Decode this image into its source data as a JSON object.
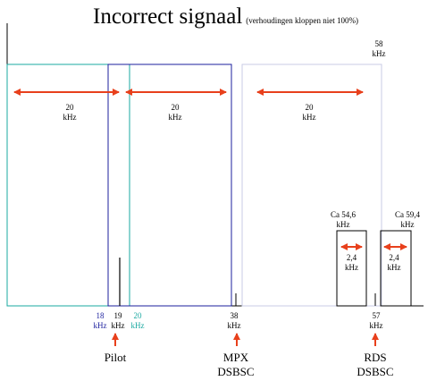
{
  "title": {
    "main": "Incorrect signaal",
    "sub": "(verhoudingen kloppen niet 100%)"
  },
  "top_freq": {
    "value": "58",
    "unit": "kHz"
  },
  "bandwidths": [
    {
      "value": "20",
      "unit": "kHz"
    },
    {
      "value": "20",
      "unit": "kHz"
    },
    {
      "value": "20",
      "unit": "kHz"
    }
  ],
  "rds_blocks": [
    {
      "center": "Ca 54,6",
      "center_unit": "kHz",
      "width": "2,4",
      "width_unit": "kHz"
    },
    {
      "center": "Ca 59,4",
      "center_unit": "kHz",
      "width": "2,4",
      "width_unit": "kHz"
    }
  ],
  "axis_ticks": [
    {
      "value": "18",
      "unit": "kHz",
      "color": "#1b1f9e"
    },
    {
      "value": "19",
      "unit": "kHz",
      "color": "#000000"
    },
    {
      "value": "20",
      "unit": "kHz",
      "color": "#19a8a0"
    },
    {
      "value": "38",
      "unit": "kHz",
      "color": "#000000"
    },
    {
      "value": "57",
      "unit": "kHz",
      "color": "#000000"
    }
  ],
  "signal_labels": {
    "pilot": "Pilot",
    "mpx_line1": "MPX",
    "mpx_line2": "DSBSC",
    "rds_line1": "RDS",
    "rds_line2": "DSBSC"
  },
  "colors": {
    "teal": "#19a8a0",
    "navy": "#1b1f9e",
    "light_band": "#c8cbe4",
    "arrow": "#e8401c"
  }
}
